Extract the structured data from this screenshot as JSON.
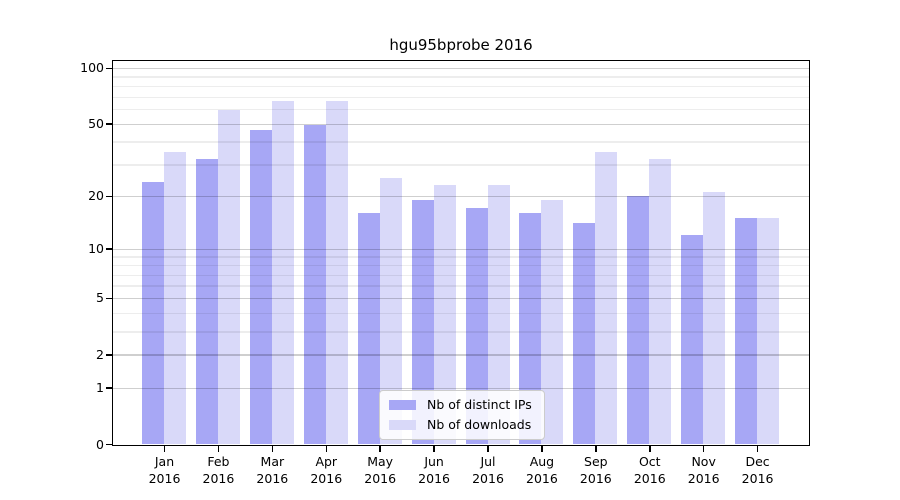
{
  "figure": {
    "title": "hgu95bprobe 2016",
    "background": "#ffffff"
  },
  "chart_data": {
    "type": "bar",
    "title": "hgu95bprobe 2016",
    "year": "2016",
    "months": [
      "Jan",
      "Feb",
      "Mar",
      "Apr",
      "May",
      "Jun",
      "Jul",
      "Aug",
      "Sep",
      "Oct",
      "Nov",
      "Dec"
    ],
    "categories": [
      "Jan 2016",
      "Feb 2016",
      "Mar 2016",
      "Apr 2016",
      "May 2016",
      "Jun 2016",
      "Jul 2016",
      "Aug 2016",
      "Sep 2016",
      "Oct 2016",
      "Nov 2016",
      "Dec 2016"
    ],
    "series": [
      {
        "name": "Nb of distinct IPs",
        "color": "#a7a7f5",
        "values": [
          24,
          32,
          46,
          49,
          16,
          19,
          17,
          16,
          14,
          20,
          12,
          15
        ]
      },
      {
        "name": "Nb of downloads",
        "color": "#d9d9f9",
        "values": [
          35,
          59,
          66,
          66,
          25,
          23,
          23,
          19,
          35,
          32,
          21,
          15
        ]
      }
    ],
    "xlabel": "",
    "ylabel": "",
    "yscale": "log1p",
    "ylim": [
      0,
      112
    ],
    "yticks_major": [
      0,
      1,
      2,
      5,
      10,
      20,
      50,
      100
    ],
    "yticks_minor": [
      3,
      4,
      6,
      7,
      8,
      9,
      30,
      40,
      60,
      70,
      80,
      90
    ],
    "grid": "horizontal major+minor gridlines drawn over bars",
    "legend_position": "lower center"
  },
  "legend": {
    "items": [
      {
        "label": "Nb of distinct IPs",
        "color": "#a7a7f5"
      },
      {
        "label": "Nb of downloads",
        "color": "#d9d9f9"
      }
    ]
  },
  "colors": {
    "spine": "#000000",
    "grid_major": "rgba(0,0,0,0.19)",
    "grid_minor": "rgba(0,0,0,0.07)",
    "bar_distinct_ips": "#a7a7f5",
    "bar_downloads": "#d9d9f9"
  }
}
